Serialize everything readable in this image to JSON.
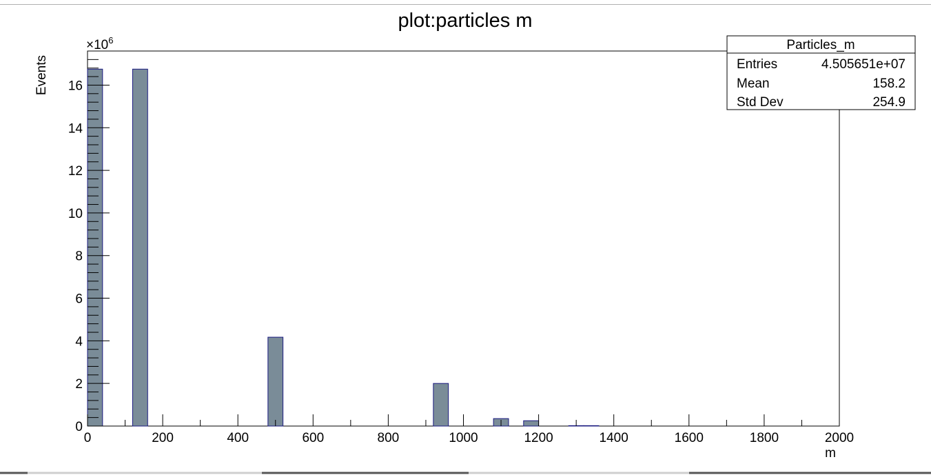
{
  "chart_data": {
    "type": "bar",
    "title": "plot:particles m",
    "xlabel": "m",
    "ylabel": "Events",
    "y_multiplier_label": "×10",
    "y_multiplier_exponent": "6",
    "xlim": [
      0,
      2000
    ],
    "ylim": [
      0,
      17.6
    ],
    "x_ticks": [
      0,
      200,
      400,
      600,
      800,
      1000,
      1200,
      1400,
      1600,
      1800,
      2000
    ],
    "y_ticks": [
      0,
      2,
      4,
      6,
      8,
      10,
      12,
      14,
      16
    ],
    "bin_width": 40,
    "bins": [
      {
        "x0": 0,
        "value": 16.75
      },
      {
        "x0": 120,
        "value": 16.75
      },
      {
        "x0": 480,
        "value": 4.17
      },
      {
        "x0": 920,
        "value": 2.0
      },
      {
        "x0": 1080,
        "value": 0.35
      },
      {
        "x0": 1160,
        "value": 0.25
      },
      {
        "x0": 1280,
        "value": 0.02
      },
      {
        "x0": 1320,
        "value": 0.02
      }
    ],
    "grid": false,
    "fill_color": "#7a8c98",
    "edge_color": "#1a1a80",
    "stats_box": {
      "title": "Particles_m",
      "position": "top-right",
      "rows": [
        {
          "label": "Entries",
          "value": "4.505651e+07"
        },
        {
          "label": "Mean",
          "value": "158.2"
        },
        {
          "label": "Std Dev",
          "value": "254.9"
        }
      ]
    }
  }
}
